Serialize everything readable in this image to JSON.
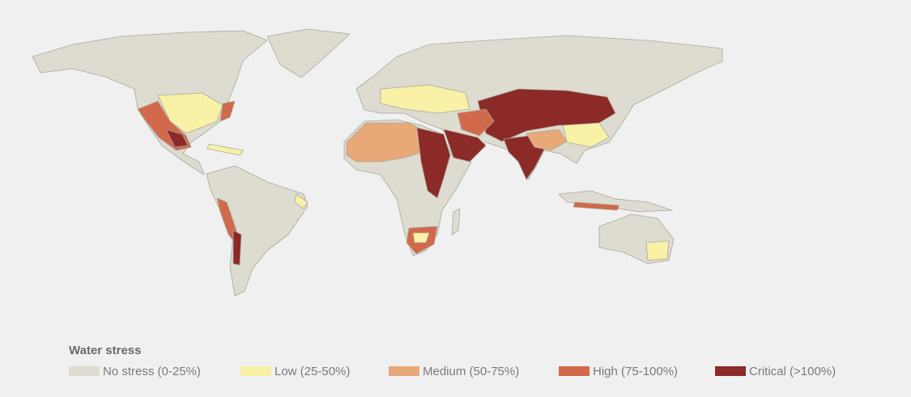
{
  "legend": {
    "title": "Water stress",
    "items": [
      {
        "label": "No stress (0-25%)",
        "color": "#dedbd0"
      },
      {
        "label": "Low (25-50%)",
        "color": "#f8f1a6"
      },
      {
        "label": "Medium (50-75%)",
        "color": "#e8a878"
      },
      {
        "label": "High (75-100%)",
        "color": "#d2694a"
      },
      {
        "label": "Critical (>100%)",
        "color": "#8c2a28"
      }
    ]
  }
}
